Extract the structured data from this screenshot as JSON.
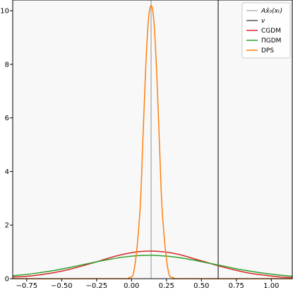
{
  "chart_data": {
    "type": "line",
    "title": "",
    "xlabel": "",
    "ylabel": "",
    "xlim": [
      -0.85,
      1.15
    ],
    "ylim": [
      0,
      10.4
    ],
    "xticks": [
      -0.75,
      -0.5,
      -0.25,
      0.0,
      0.25,
      0.5,
      0.75,
      1.0
    ],
    "xtick_labels": [
      "−0.75",
      "−0.50",
      "−0.25",
      "0.00",
      "0.25",
      "0.50",
      "0.75",
      "1.00"
    ],
    "yticks": [
      0,
      2,
      4,
      6,
      8,
      10
    ],
    "ytick_labels": [
      "0",
      "2",
      "4",
      "6",
      "8",
      "10"
    ],
    "grid": false,
    "background": "#f8f8f8",
    "legend": {
      "placement": "top-right",
      "entries": [
        {
          "label": "Ax̃₀(xₜ)",
          "color": "#b3b3b3"
        },
        {
          "label": "v",
          "color": "#555555"
        },
        {
          "label": "CGDM",
          "color": "#d62728"
        },
        {
          "label": "ΠGDM",
          "color": "#2ca02c"
        },
        {
          "label": "DPS",
          "color": "#ff7f0e"
        }
      ]
    },
    "vlines": [
      {
        "name": "Ax̃₀(xₜ)",
        "x": 0.14,
        "color": "#b3b3b3"
      },
      {
        "name": "v",
        "x": 0.62,
        "color": "#555555"
      }
    ],
    "series": [
      {
        "name": "CGDM",
        "color": "#d62728",
        "x": [
          -0.85,
          -0.75,
          -0.65,
          -0.55,
          -0.45,
          -0.35,
          -0.25,
          -0.15,
          -0.05,
          0.05,
          0.15,
          0.25,
          0.35,
          0.45,
          0.55,
          0.65,
          0.75,
          0.85,
          0.95,
          1.05,
          1.15
        ],
        "y": [
          0.06,
          0.09,
          0.15,
          0.23,
          0.34,
          0.48,
          0.63,
          0.79,
          0.92,
          1.01,
          1.03,
          0.99,
          0.89,
          0.74,
          0.59,
          0.44,
          0.31,
          0.2,
          0.13,
          0.07,
          0.04
        ]
      },
      {
        "name": "ΠGDM",
        "color": "#2ca02c",
        "x": [
          -0.85,
          -0.75,
          -0.65,
          -0.55,
          -0.45,
          -0.35,
          -0.25,
          -0.15,
          -0.05,
          0.05,
          0.15,
          0.25,
          0.35,
          0.45,
          0.55,
          0.65,
          0.75,
          0.85,
          0.95,
          1.05,
          1.15
        ],
        "y": [
          0.11,
          0.16,
          0.23,
          0.31,
          0.41,
          0.52,
          0.63,
          0.73,
          0.81,
          0.86,
          0.87,
          0.84,
          0.78,
          0.69,
          0.58,
          0.48,
          0.37,
          0.28,
          0.2,
          0.14,
          0.09
        ]
      },
      {
        "name": "DPS",
        "color": "#ff7f0e",
        "x": [
          -0.85,
          -0.1,
          -0.02,
          0.02,
          0.06,
          0.08,
          0.1,
          0.12,
          0.14,
          0.16,
          0.18,
          0.2,
          0.22,
          0.26,
          0.3,
          0.38,
          1.15
        ],
        "y": [
          0,
          0,
          0.03,
          0.37,
          2.5,
          5.0,
          7.7,
          9.6,
          10.2,
          9.6,
          7.7,
          5.0,
          2.5,
          0.37,
          0.03,
          0,
          0
        ]
      }
    ]
  }
}
